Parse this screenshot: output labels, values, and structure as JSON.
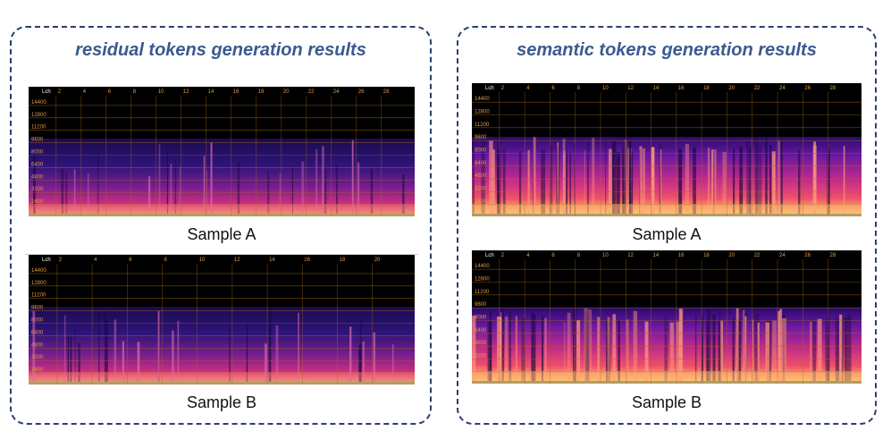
{
  "panels": [
    {
      "title": "residual tokens generation results",
      "samples": [
        {
          "caption": "Sample A",
          "corner_label": "Lch",
          "y_ticks": [
            "14400",
            "12800",
            "11200",
            "9600",
            "8000",
            "6400",
            "4800",
            "3200",
            "1600"
          ],
          "x_ticks": [
            "2",
            "4",
            "6",
            "8",
            "10",
            "12",
            "14",
            "16",
            "18",
            "20",
            "22",
            "24",
            "26",
            "28"
          ],
          "style": "residual"
        },
        {
          "caption": "Sample B",
          "corner_label": "Lch",
          "y_ticks": [
            "14400",
            "12800",
            "11200",
            "9600",
            "8000",
            "6400",
            "4800",
            "3200",
            "1600"
          ],
          "x_ticks": [
            "2",
            "4",
            "6",
            "8",
            "10",
            "12",
            "14",
            "16",
            "18",
            "20"
          ],
          "style": "residual"
        }
      ]
    },
    {
      "title": "semantic tokens generation results",
      "samples": [
        {
          "caption": "Sample A",
          "corner_label": "Lch",
          "y_ticks": [
            "14400",
            "12800",
            "11200",
            "9600",
            "8000",
            "6400",
            "4800",
            "3200",
            "1600"
          ],
          "x_ticks": [
            "2",
            "4",
            "6",
            "8",
            "10",
            "12",
            "14",
            "16",
            "18",
            "20",
            "22",
            "24",
            "26",
            "28"
          ],
          "style": "semantic"
        },
        {
          "caption": "Sample B",
          "corner_label": "Lch",
          "y_ticks": [
            "14400",
            "12800",
            "11200",
            "9600",
            "8000",
            "6400",
            "4800",
            "3200",
            "1600"
          ],
          "x_ticks": [
            "2",
            "4",
            "6",
            "8",
            "10",
            "12",
            "14",
            "16",
            "18",
            "20",
            "22",
            "24",
            "26",
            "28"
          ],
          "style": "semantic"
        }
      ]
    }
  ],
  "colors": {
    "border": "#2b3f6b",
    "title": "#3a5a8f",
    "grid": "#a86a1a",
    "tick": "#e09a40",
    "background": "#000000"
  }
}
